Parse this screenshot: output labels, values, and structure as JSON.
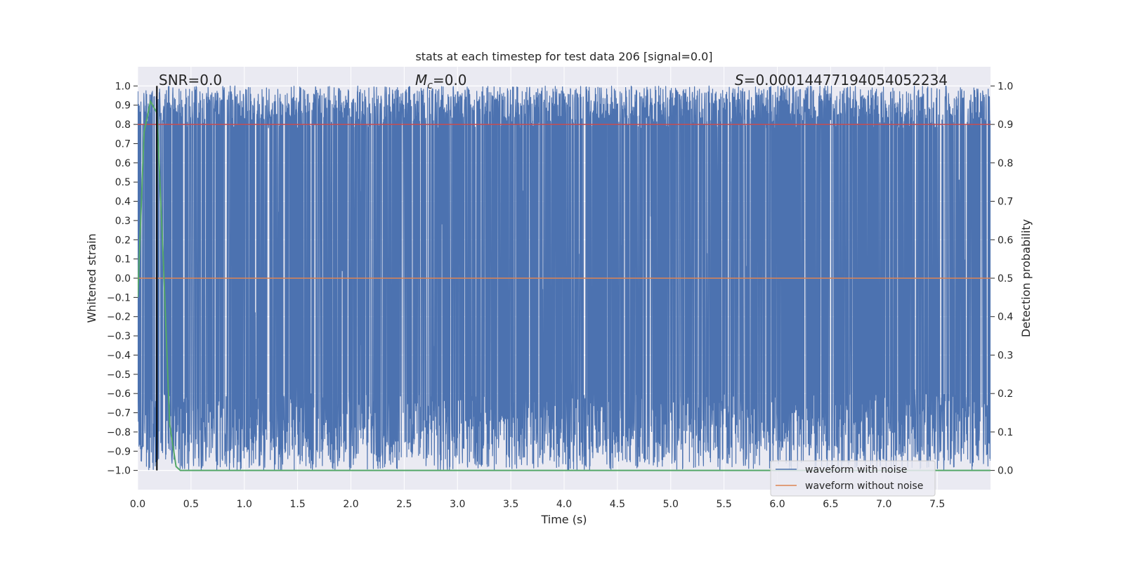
{
  "chart_data": {
    "type": "line",
    "title": "stats at each timestep for test data 206 [signal=0.0]",
    "xlabel": "Time (s)",
    "ylabel": "Whitened strain",
    "y2label": "Detection probability",
    "xlim": [
      0.0,
      8.0
    ],
    "ylim": [
      -1.1,
      1.1
    ],
    "y2lim": [
      -0.05,
      1.05
    ],
    "xticks": [
      0.0,
      0.5,
      1.0,
      1.5,
      2.0,
      2.5,
      3.0,
      3.5,
      4.0,
      4.5,
      5.0,
      5.5,
      6.0,
      6.5,
      7.0,
      7.5
    ],
    "xtick_labels": [
      "0.0",
      "0.5",
      "1.0",
      "1.5",
      "2.0",
      "2.5",
      "3.0",
      "3.5",
      "4.0",
      "4.5",
      "5.0",
      "5.5",
      "6.0",
      "6.5",
      "7.0",
      "7.5"
    ],
    "yticks": [
      1.0,
      0.9,
      0.8,
      0.7,
      0.6,
      0.5,
      0.4,
      0.3,
      0.2,
      0.1,
      0.0,
      -0.1,
      -0.2,
      -0.3,
      -0.4,
      -0.5,
      -0.6,
      -0.7,
      -0.8,
      -0.9,
      -1.0
    ],
    "ytick_labels": [
      "1.0",
      "0.9",
      "0.8",
      "0.7",
      "0.6",
      "0.5",
      "0.4",
      "0.3",
      "0.2",
      "0.1",
      "0.0",
      "−0.1",
      "−0.2",
      "−0.3",
      "−0.4",
      "−0.5",
      "−0.6",
      "−0.7",
      "−0.8",
      "−0.9",
      "−1.0"
    ],
    "y2ticks": [
      1.0,
      0.9,
      0.8,
      0.7,
      0.6,
      0.5,
      0.4,
      0.3,
      0.2,
      0.1,
      0.0
    ],
    "y2tick_labels": [
      "1.0",
      "0.9",
      "0.8",
      "0.7",
      "0.6",
      "0.5",
      "0.4",
      "0.3",
      "0.2",
      "0.1",
      "0.0"
    ],
    "grid": true,
    "legend_position": "bottom-right",
    "annotations": {
      "snr": "SNR=0.0",
      "mc_symbol": "M",
      "mc_sub": "c",
      "mc_value": "=0.0",
      "s_symbol": "S",
      "s_value": "=0.00014477194054052234"
    },
    "series": [
      {
        "name": "waveform with noise",
        "color": "#4c72b0",
        "description": "dense noise filling approx -1.0 to 1.0 across 0 to 8 s",
        "amplitude": 1.0
      },
      {
        "name": "waveform without noise",
        "color": "#dd8452",
        "x": [
          0.0,
          8.0
        ],
        "y": [
          0.0,
          0.0
        ]
      },
      {
        "color": "#55a868",
        "axis": "right",
        "x": [
          0.0,
          0.06,
          0.12,
          0.18,
          0.24,
          0.3,
          0.36,
          0.4,
          8.0
        ],
        "y": [
          0.45,
          0.88,
          0.96,
          0.93,
          0.55,
          0.12,
          0.01,
          0.0,
          0.0
        ]
      }
    ],
    "threshold": {
      "axis": "right",
      "value": 0.9,
      "color": "#c44e52"
    },
    "marker_line": {
      "x": 0.18,
      "color": "#000000"
    }
  }
}
